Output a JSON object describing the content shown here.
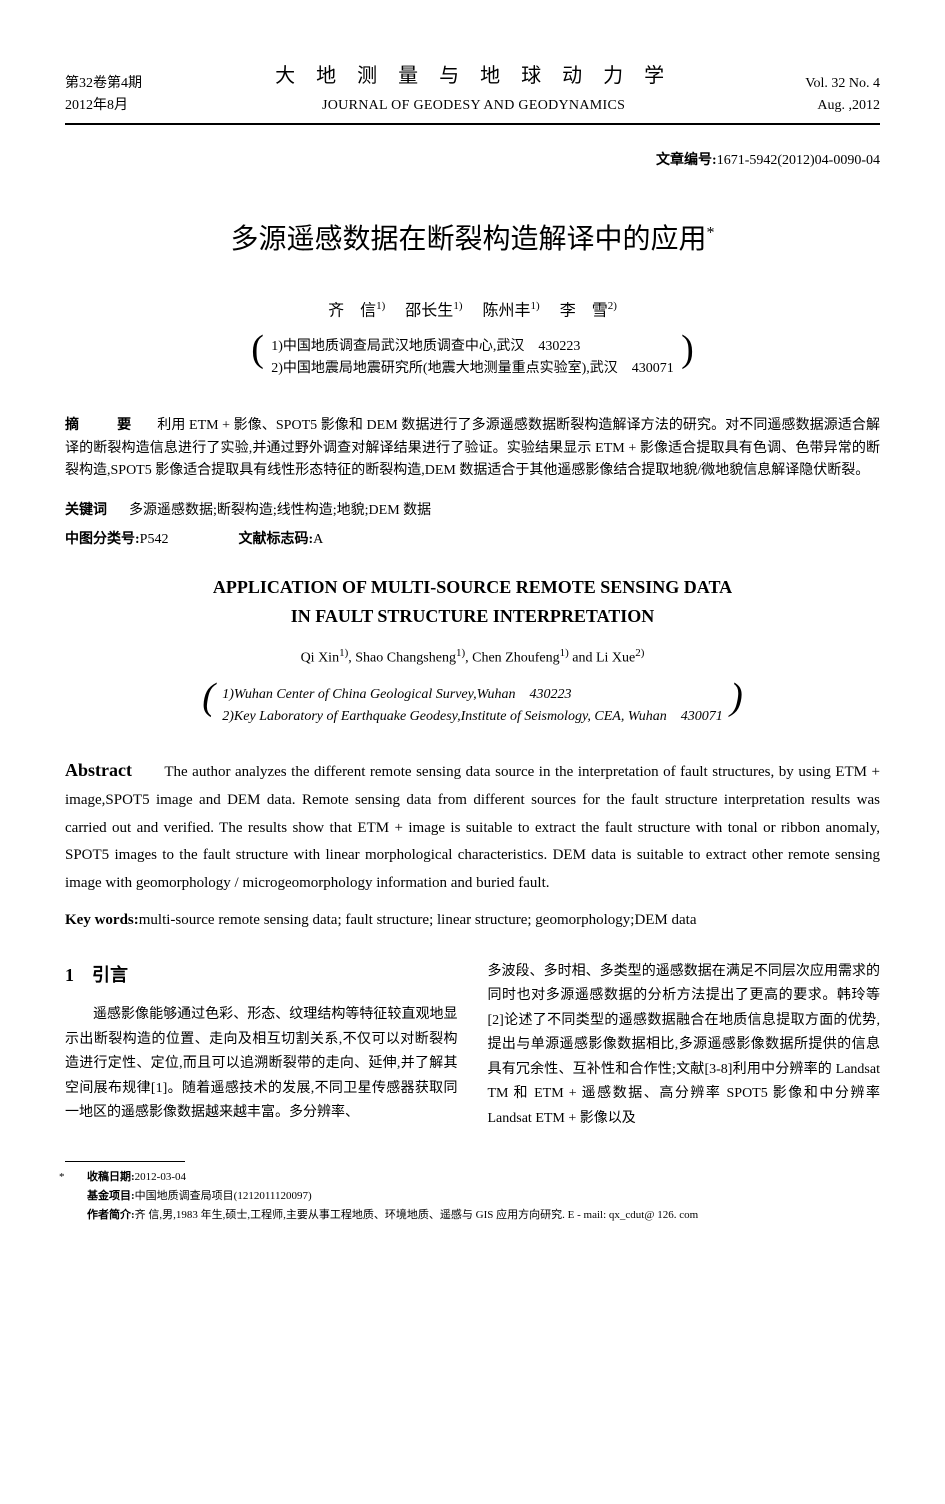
{
  "header": {
    "volume_line_cn": "第32卷第4期",
    "date_line_cn": "2012年8月",
    "journal_cn": "大 地 测 量 与 地 球 动 力 学",
    "journal_en": "JOURNAL OF GEODESY AND GEODYNAMICS",
    "volume_line_en": "Vol. 32 No. 4",
    "date_line_en": "Aug. ,2012"
  },
  "article_id": {
    "label": "文章编号:",
    "value": "1671-5942(2012)04-0090-04"
  },
  "title_cn": "多源遥感数据在断裂构造解译中的应用",
  "authors_cn": {
    "a1": "齐　信",
    "a1_sup": "1)",
    "a2": "邵长生",
    "a2_sup": "1)",
    "a3": "陈州丰",
    "a3_sup": "1)",
    "a4": "李　雪",
    "a4_sup": "2)"
  },
  "affiliations_cn": {
    "l1": "1)中国地质调查局武汉地质调查中心,武汉　430223",
    "l2": "2)中国地震局地震研究所(地震大地测量重点实验室),武汉　430071"
  },
  "abstract_cn": {
    "label": "摘　要",
    "text": "利用 ETM + 影像、SPOT5 影像和 DEM 数据进行了多源遥感数据断裂构造解译方法的研究。对不同遥感数据源适合解译的断裂构造信息进行了实验,并通过野外调查对解译结果进行了验证。实验结果显示 ETM + 影像适合提取具有色调、色带异常的断裂构造,SPOT5 影像适合提取具有线性形态特征的断裂构造,DEM 数据适合于其他遥感影像结合提取地貌/微地貌信息解译隐伏断裂。"
  },
  "keywords_cn": {
    "label": "关键词",
    "text": "多源遥感数据;断裂构造;线性构造;地貌;DEM 数据"
  },
  "clc": {
    "label": "中图分类号:",
    "value": "P542"
  },
  "doc_code": {
    "label": "文献标志码:",
    "value": "A"
  },
  "title_en_l1": "APPLICATION OF MULTI-SOURCE REMOTE SENSING DATA",
  "title_en_l2": "IN FAULT STRUCTURE INTERPRETATION",
  "authors_en": {
    "a1": "Qi Xin",
    "a1_sup": "1)",
    "a2": ", Shao Changsheng",
    "a2_sup": "1)",
    "a3": ", Chen Zhoufeng",
    "a3_sup": "1)",
    "a4": " and Li Xue",
    "a4_sup": "2)"
  },
  "affiliations_en": {
    "l1": "1)Wuhan Center of China Geological Survey,Wuhan　430223",
    "l2": "2)Key Laboratory of Earthquake Geodesy,Institute of Seismology, CEA, Wuhan　430071"
  },
  "abstract_en": {
    "label": "Abstract",
    "text": "　　The author analyzes the different remote sensing data source in the interpretation of fault structures, by using ETM + image,SPOT5 image and DEM data. Remote sensing data from different sources for the fault structure interpretation results was carried out and verified. The results show that ETM + image is suitable to extract the fault structure with tonal or ribbon anomaly, SPOT5 images to the fault structure with linear morphological characteristics. DEM data is suitable to extract other remote sensing image with geomorphology / microgeomorphology information and buried fault."
  },
  "keywords_en": {
    "label": "Key words:",
    "text": "multi-source remote sensing data; fault structure; linear structure; geomorphology;DEM data"
  },
  "intro": {
    "heading": "1　引言",
    "left": "遥感影像能够通过色彩、形态、纹理结构等特征较直观地显示出断裂构造的位置、走向及相互切割关系,不仅可以对断裂构造进行定性、定位,而且可以追溯断裂带的走向、延伸,并了解其空间展布规律[1]。随着遥感技术的发展,不同卫星传感器获取同一地区的遥感影像数据越来越丰富。多分辨率、",
    "right": "多波段、多时相、多类型的遥感数据在满足不同层次应用需求的同时也对多源遥感数据的分析方法提出了更高的要求。韩玲等[2]论述了不同类型的遥感数据融合在地质信息提取方面的优势,提出与单源遥感影像数据相比,多源遥感影像数据所提供的信息具有冗余性、互补性和合作性;文献[3-8]利用中分辨率的 Landsat TM 和 ETM + 遥感数据、高分辨率 SPOT5 影像和中分辨率 Landsat ETM + 影像以及"
  },
  "footnotes": {
    "star": "*",
    "recv_label": "收稿日期:",
    "recv_value": "2012-03-04",
    "fund_label": "基金项目:",
    "fund_value": "中国地质调查局项目(1212011120097)",
    "author_label": "作者简介:",
    "author_value": "齐 信,男,1983 年生,硕士,工程师,主要从事工程地质、环境地质、遥感与 GIS 应用方向研究. E - mail: qx_cdut@ 126. com"
  }
}
